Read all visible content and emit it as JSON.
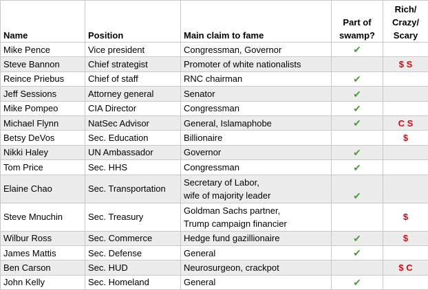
{
  "table": {
    "headers": [
      "Name",
      "Position",
      "Main claim to fame",
      [
        "Part of",
        "swamp?"
      ],
      [
        "Rich/",
        "Crazy/",
        "Scary"
      ]
    ],
    "rows": [
      [
        "Mike Pence",
        "Vice president",
        "Congressman, Governor",
        "✔",
        null
      ],
      [
        "Steve Bannon",
        "Chief strategist",
        "Promoter of white nationalists",
        null,
        "$ S"
      ],
      [
        "Reince Priebus",
        "Chief of staff",
        "RNC chairman",
        "✔",
        null
      ],
      [
        "Jeff Sessions",
        "Attorney general",
        "Senator",
        "✔",
        null
      ],
      [
        "Mike Pompeo",
        "CIA Director",
        "Congressman",
        "✔",
        null
      ],
      [
        "Michael Flynn",
        "NatSec Advisor",
        "General, Islamaphobe",
        "✔",
        "C S"
      ],
      [
        "Betsy DeVos",
        "Sec. Education",
        "Billionaire",
        null,
        "$"
      ],
      [
        "Nikki Haley",
        "UN Ambassador",
        "Governor",
        "✔",
        null
      ],
      [
        "Tom Price",
        "Sec. HHS",
        "Congressman",
        "✔",
        null
      ],
      [
        "Elaine Chao",
        "Sec. Transportation",
        [
          "Secretary of Labor,",
          "wife of majority leader"
        ],
        "✔",
        null
      ],
      [
        "Steve Mnuchin",
        "Sec. Treasury",
        [
          "Goldman Sachs partner,",
          "Trump campaign financier"
        ],
        null,
        "$"
      ],
      [
        "Wilbur Ross",
        "Sec. Commerce",
        "Hedge fund gazillionaire",
        "✔",
        "$"
      ],
      [
        "James Mattis",
        "Sec. Defense",
        "General",
        "✔",
        null
      ],
      [
        "Ben Carson",
        "Sec. HUD",
        "Neurosurgeon, crackpot",
        null,
        "$ C"
      ],
      [
        "John Kelly",
        "Sec. Homeland",
        "General",
        "✔",
        null
      ]
    ]
  }
}
